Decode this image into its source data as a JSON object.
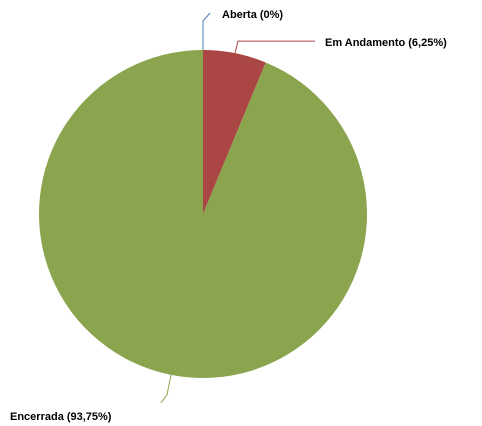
{
  "chart_data": {
    "type": "pie",
    "categories": [
      "Aberta",
      "Em Andamento",
      "Encerrada"
    ],
    "values": [
      0,
      6.25,
      93.75
    ],
    "value_labels": [
      "(0%)",
      "(6,25%)",
      "(93,75%)"
    ],
    "colors": [
      "#4a7ebb",
      "#aa4643",
      "#8ba54e"
    ]
  }
}
